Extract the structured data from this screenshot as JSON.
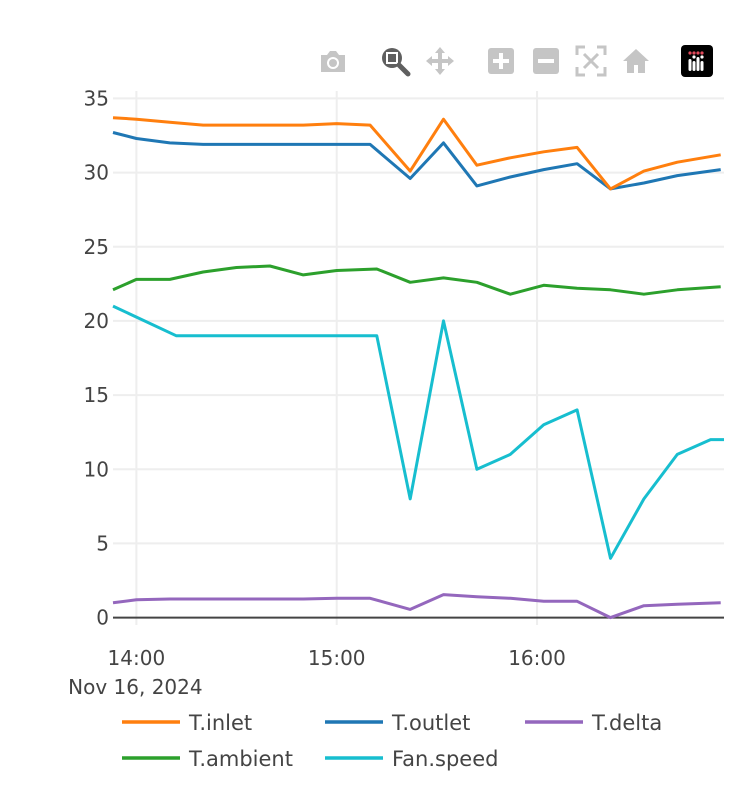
{
  "modebar": {
    "buttons": [
      "camera-icon",
      "zoom-icon",
      "pan-icon",
      "zoom-in-icon",
      "zoom-out-icon",
      "autoscale-icon",
      "reset-axes-icon",
      "plotly-logo-icon"
    ]
  },
  "chart_data": {
    "type": "line",
    "title": "",
    "xlabel": "",
    "ylabel": "",
    "x_range": [
      "2024-11-16 13:53",
      "2024-11-16 16:56"
    ],
    "ylim": [
      -0.5,
      35.5
    ],
    "y_ticks": [
      0,
      5,
      10,
      15,
      20,
      25,
      30,
      35
    ],
    "y_tick_labels": [
      "0",
      "5",
      "10",
      "15",
      "20",
      "25",
      "30",
      "35"
    ],
    "x_ticks": [
      "2024-11-16 14:00",
      "2024-11-16 15:00",
      "2024-11-16 16:00"
    ],
    "x_tick_labels": [
      "14:00",
      "15:00",
      "16:00"
    ],
    "x_date_label": "Nov 16, 2024",
    "grid": true,
    "legend_position": "bottom",
    "x": [
      "2024-11-16 13:53",
      "2024-11-16 14:55",
      "2024-11-16 15:12",
      "2024-11-16 15:22",
      "2024-11-16 15:32",
      "2024-11-16 15:42",
      "2024-11-16 15:52",
      "2024-11-16 16:02",
      "2024-11-16 16:12",
      "2024-11-16 16:22",
      "2024-11-16 16:32",
      "2024-11-16 16:42",
      "2024-11-16 16:52"
    ],
    "series": [
      {
        "name": "T.inlet",
        "color": "#ff7f0e",
        "x": [
          "2024-11-16 13:53",
          "2024-11-16 14:00",
          "2024-11-16 14:10",
          "2024-11-16 14:20",
          "2024-11-16 14:30",
          "2024-11-16 14:40",
          "2024-11-16 14:50",
          "2024-11-16 15:00",
          "2024-11-16 15:10",
          "2024-11-16 15:22",
          "2024-11-16 15:32",
          "2024-11-16 15:42",
          "2024-11-16 15:52",
          "2024-11-16 16:02",
          "2024-11-16 16:12",
          "2024-11-16 16:22",
          "2024-11-16 16:32",
          "2024-11-16 16:42",
          "2024-11-16 16:55"
        ],
        "values": [
          33.7,
          33.6,
          33.4,
          33.2,
          33.2,
          33.2,
          33.2,
          33.3,
          33.2,
          30.1,
          33.6,
          30.5,
          31.0,
          31.4,
          31.7,
          28.9,
          30.1,
          30.7,
          31.2
        ]
      },
      {
        "name": "T.outlet",
        "color": "#1f77b4",
        "x": [
          "2024-11-16 13:53",
          "2024-11-16 14:00",
          "2024-11-16 14:10",
          "2024-11-16 14:20",
          "2024-11-16 14:30",
          "2024-11-16 14:40",
          "2024-11-16 14:50",
          "2024-11-16 15:00",
          "2024-11-16 15:10",
          "2024-11-16 15:22",
          "2024-11-16 15:32",
          "2024-11-16 15:42",
          "2024-11-16 15:52",
          "2024-11-16 16:02",
          "2024-11-16 16:12",
          "2024-11-16 16:22",
          "2024-11-16 16:32",
          "2024-11-16 16:42",
          "2024-11-16 16:55"
        ],
        "values": [
          32.7,
          32.3,
          32.0,
          31.9,
          31.9,
          31.9,
          31.9,
          31.9,
          31.9,
          29.6,
          32.0,
          29.1,
          29.7,
          30.2,
          30.6,
          28.9,
          29.3,
          29.8,
          30.2
        ]
      },
      {
        "name": "T.delta",
        "color": "#9467bd",
        "x": [
          "2024-11-16 13:53",
          "2024-11-16 14:00",
          "2024-11-16 14:10",
          "2024-11-16 14:20",
          "2024-11-16 14:30",
          "2024-11-16 14:40",
          "2024-11-16 14:50",
          "2024-11-16 15:00",
          "2024-11-16 15:10",
          "2024-11-16 15:22",
          "2024-11-16 15:32",
          "2024-11-16 15:42",
          "2024-11-16 15:52",
          "2024-11-16 16:02",
          "2024-11-16 16:12",
          "2024-11-16 16:22",
          "2024-11-16 16:32",
          "2024-11-16 16:42",
          "2024-11-16 16:55"
        ],
        "values": [
          1.0,
          1.2,
          1.25,
          1.25,
          1.25,
          1.25,
          1.25,
          1.3,
          1.3,
          0.55,
          1.55,
          1.4,
          1.3,
          1.1,
          1.1,
          0.0,
          0.8,
          0.9,
          1.0
        ]
      },
      {
        "name": "T.ambient",
        "color": "#2ca02c",
        "x": [
          "2024-11-16 13:53",
          "2024-11-16 14:00",
          "2024-11-16 14:10",
          "2024-11-16 14:20",
          "2024-11-16 14:30",
          "2024-11-16 14:40",
          "2024-11-16 14:50",
          "2024-11-16 15:00",
          "2024-11-16 15:12",
          "2024-11-16 15:22",
          "2024-11-16 15:32",
          "2024-11-16 15:42",
          "2024-11-16 15:52",
          "2024-11-16 16:02",
          "2024-11-16 16:12",
          "2024-11-16 16:22",
          "2024-11-16 16:32",
          "2024-11-16 16:42",
          "2024-11-16 16:55"
        ],
        "values": [
          22.1,
          22.8,
          22.8,
          23.3,
          23.6,
          23.7,
          23.1,
          23.4,
          23.5,
          22.6,
          22.9,
          22.6,
          21.8,
          22.4,
          22.2,
          22.1,
          21.8,
          22.1,
          22.3
        ]
      },
      {
        "name": "Fan.speed",
        "color": "#17becf",
        "x": [
          "2024-11-16 13:53",
          "2024-11-16 14:12",
          "2024-11-16 15:12",
          "2024-11-16 15:22",
          "2024-11-16 15:32",
          "2024-11-16 15:42",
          "2024-11-16 15:52",
          "2024-11-16 16:02",
          "2024-11-16 16:12",
          "2024-11-16 16:22",
          "2024-11-16 16:32",
          "2024-11-16 16:42",
          "2024-11-16 16:52",
          "2024-11-16 16:56"
        ],
        "values": [
          21,
          19,
          19,
          8,
          20,
          10,
          11,
          13,
          14,
          4,
          8,
          11,
          12,
          12
        ]
      }
    ]
  }
}
